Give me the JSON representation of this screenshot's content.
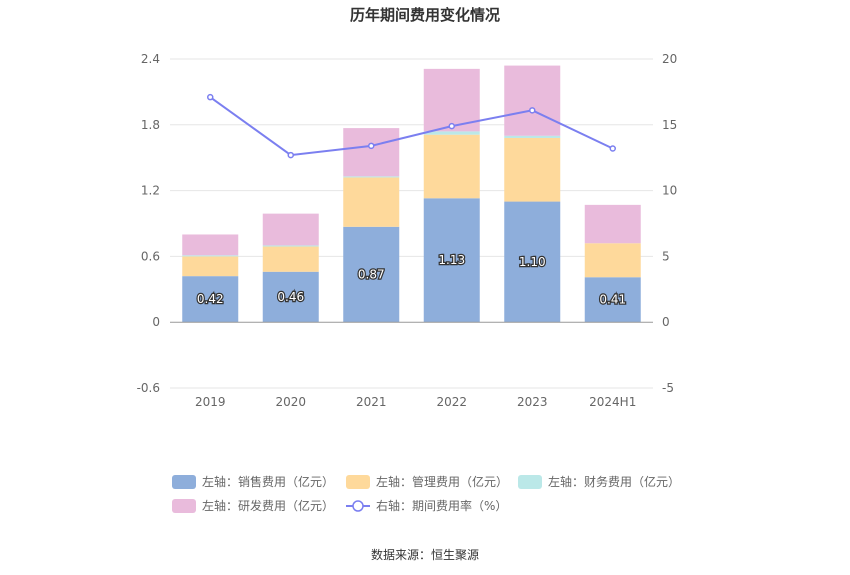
{
  "chart_data": {
    "type": "bar",
    "title": "历年期间费用变化情况",
    "categories": [
      "2019",
      "2020",
      "2021",
      "2022",
      "2023",
      "2024H1"
    ],
    "stacked": true,
    "series": [
      {
        "name": "左轴：销售费用（亿元）",
        "axis": "left",
        "color": "#8eaedb",
        "values": [
          0.42,
          0.46,
          0.87,
          1.13,
          1.1,
          0.41
        ],
        "labels": [
          "0.42",
          "0.46",
          "0.87",
          "1.13",
          "1.10",
          "0.41"
        ]
      },
      {
        "name": "左轴：管理费用（亿元）",
        "axis": "left",
        "color": "#fed99b",
        "values": [
          0.18,
          0.23,
          0.45,
          0.58,
          0.58,
          0.31
        ]
      },
      {
        "name": "左轴：财务费用（亿元）",
        "axis": "left",
        "color": "#bbe8e8",
        "values": [
          0.01,
          0.01,
          0.01,
          0.03,
          0.02,
          0.0
        ]
      },
      {
        "name": "左轴：研发费用（亿元）",
        "axis": "left",
        "color": "#e9bbdc",
        "values": [
          0.19,
          0.29,
          0.44,
          0.57,
          0.64,
          0.35
        ]
      },
      {
        "name": "右轴：期间费用率（%）",
        "axis": "right",
        "type": "line",
        "color": "#7b7ff0",
        "values": [
          17.1,
          12.7,
          13.4,
          14.9,
          16.1,
          13.2
        ]
      }
    ],
    "yAxisLeft": {
      "min": -0.6,
      "max": 2.4,
      "ticks": [
        "-0.6",
        "0",
        "0.6",
        "1.2",
        "1.8",
        "2.4"
      ],
      "tickValues": [
        -0.6,
        0,
        0.6,
        1.2,
        1.8,
        2.4
      ]
    },
    "yAxisRight": {
      "min": -5,
      "max": 20,
      "ticks": [
        "-5",
        "0",
        "5",
        "10",
        "15",
        "20"
      ],
      "tickValues": [
        -5,
        0,
        5,
        10,
        15,
        20
      ]
    },
    "grid": true,
    "legend_position": "bottom",
    "source": "数据来源：恒生聚源"
  }
}
